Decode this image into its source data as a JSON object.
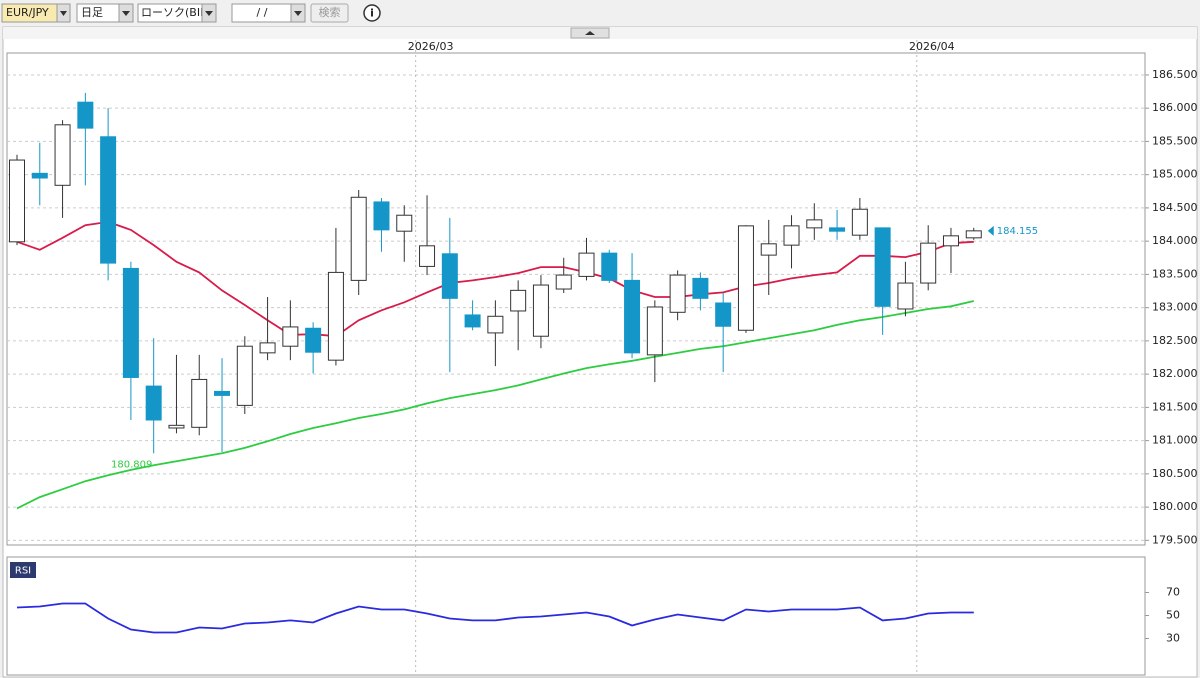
{
  "toolbar": {
    "symbol": "EUR/JPY",
    "period": "日足",
    "chart_style": "ローソク(BID)",
    "date": "/  /",
    "search": "検索",
    "info": "i"
  },
  "chart_data": [
    {
      "type": "candlestick",
      "categories": [
        null,
        null,
        null,
        null,
        null,
        null,
        null,
        null,
        null,
        null,
        null,
        null,
        null,
        null,
        null,
        null,
        null,
        null,
        "2026/03",
        null,
        null,
        null,
        null,
        null,
        null,
        null,
        null,
        null,
        null,
        null,
        null,
        null,
        null,
        null,
        null,
        null,
        null,
        null,
        null,
        null,
        "2026/04",
        null,
        null
      ],
      "open": [
        183.99,
        185.02,
        184.84,
        186.09,
        185.57,
        183.59,
        181.82,
        181.19,
        181.2,
        181.74,
        181.53,
        182.32,
        182.42,
        182.69,
        182.21,
        183.41,
        184.59,
        184.15,
        183.62,
        183.81,
        182.89,
        182.62,
        182.95,
        182.57,
        183.28,
        183.47,
        183.82,
        183.41,
        182.29,
        182.93,
        183.44,
        183.07,
        182.66,
        183.79,
        183.94,
        184.2,
        184.2,
        184.09,
        184.2,
        182.98,
        183.37,
        183.93,
        184.05
      ],
      "high": [
        185.3,
        185.48,
        185.82,
        186.23,
        186.0,
        183.69,
        182.54,
        182.29,
        182.29,
        182.24,
        182.57,
        183.16,
        183.11,
        182.78,
        184.2,
        184.77,
        184.65,
        184.54,
        184.69,
        184.35,
        183.11,
        183.11,
        183.41,
        183.49,
        183.75,
        184.05,
        183.87,
        183.82,
        183.11,
        183.56,
        183.53,
        183.22,
        184.24,
        184.32,
        184.39,
        184.57,
        184.47,
        184.65,
        184.2,
        183.69,
        184.24,
        184.2,
        184.2
      ],
      "low": [
        183.94,
        184.54,
        184.35,
        184.84,
        183.41,
        181.31,
        180.809,
        181.11,
        181.08,
        180.83,
        181.4,
        182.21,
        182.21,
        182.01,
        182.13,
        183.19,
        183.84,
        183.69,
        183.49,
        182.03,
        182.66,
        182.12,
        182.36,
        182.39,
        183.22,
        183.41,
        183.37,
        182.24,
        181.88,
        182.81,
        182.96,
        182.03,
        182.62,
        183.19,
        183.59,
        184.02,
        184.02,
        184.02,
        182.59,
        182.87,
        183.26,
        183.52,
        184.02
      ],
      "close": [
        185.22,
        184.95,
        185.75,
        185.7,
        183.67,
        181.95,
        181.31,
        181.23,
        181.92,
        181.68,
        182.42,
        182.47,
        182.71,
        182.33,
        183.53,
        184.66,
        184.17,
        184.39,
        183.93,
        183.14,
        182.71,
        182.87,
        183.26,
        183.34,
        183.49,
        183.82,
        183.41,
        182.32,
        183.01,
        183.49,
        183.14,
        182.72,
        184.23,
        183.96,
        184.23,
        184.32,
        184.15,
        184.48,
        183.02,
        183.37,
        183.97,
        184.08,
        184.155
      ],
      "up_color": "#ffffff",
      "down_color": "#1596c8",
      "series": [
        {
          "color": "#d81b4a",
          "values": [
            183.99,
            183.87,
            184.05,
            184.24,
            184.29,
            184.17,
            183.94,
            183.69,
            183.53,
            183.26,
            183.04,
            182.81,
            182.59,
            182.6,
            182.57,
            182.81,
            182.96,
            183.08,
            183.23,
            183.37,
            183.41,
            183.46,
            183.52,
            183.61,
            183.61,
            183.53,
            183.44,
            183.26,
            183.16,
            183.16,
            183.2,
            183.23,
            183.32,
            183.37,
            183.44,
            183.49,
            183.53,
            183.78,
            183.78,
            183.76,
            183.84,
            183.97,
            183.99
          ]
        },
        {
          "color": "#2ecc40",
          "values": [
            179.98,
            180.15,
            180.27,
            180.39,
            180.48,
            180.56,
            180.63,
            180.69,
            180.75,
            180.81,
            180.89,
            180.99,
            181.1,
            181.19,
            181.26,
            181.34,
            181.4,
            181.47,
            181.56,
            181.64,
            181.7,
            181.76,
            181.83,
            181.92,
            182.01,
            182.09,
            182.15,
            182.2,
            182.26,
            182.32,
            182.38,
            182.42,
            182.48,
            182.54,
            182.6,
            182.66,
            182.74,
            182.81,
            182.86,
            182.92,
            182.98,
            183.02,
            183.1
          ]
        }
      ],
      "ylim": [
        179.43,
        186.83
      ],
      "yticks": [
        {
          "value": 179.5,
          "label": "179.500"
        },
        {
          "value": 180,
          "label": "180.000"
        },
        {
          "value": 180.5,
          "label": "180.500"
        },
        {
          "value": 181,
          "label": "181.000"
        },
        {
          "value": 181.5,
          "label": "181.500"
        },
        {
          "value": 182,
          "label": "182.000"
        },
        {
          "value": 182.5,
          "label": "182.500"
        },
        {
          "value": 183,
          "label": "183.000"
        },
        {
          "value": 183.5,
          "label": "183.500"
        },
        {
          "value": 184,
          "label": "184.000"
        },
        {
          "value": 184.5,
          "label": "184.500"
        },
        {
          "value": 185,
          "label": "185.000"
        },
        {
          "value": 185.5,
          "label": "185.500"
        },
        {
          "value": 186,
          "label": "186.000"
        },
        {
          "value": 186.5,
          "label": "186.500"
        }
      ],
      "grid": true
    },
    {
      "type": "line",
      "title": "RSI",
      "series": [
        {
          "color": "#2a2ae0",
          "values": [
            57.0,
            57.8,
            60.4,
            60.4,
            47.4,
            37.8,
            35.2,
            35.2,
            39.6,
            38.7,
            43.0,
            43.9,
            45.7,
            43.9,
            51.7,
            57.8,
            55.2,
            55.2,
            51.7,
            47.4,
            45.7,
            45.7,
            48.3,
            49.1,
            50.9,
            52.6,
            49.1,
            41.3,
            46.5,
            50.9,
            48.3,
            45.7,
            55.2,
            53.5,
            55.2,
            55.2,
            55.2,
            57.0,
            45.7,
            47.4,
            51.7,
            52.6,
            52.6
          ]
        }
      ],
      "ylim": [
        0,
        100
      ],
      "yticks": [
        30,
        50,
        70
      ],
      "grid": false
    }
  ]
}
